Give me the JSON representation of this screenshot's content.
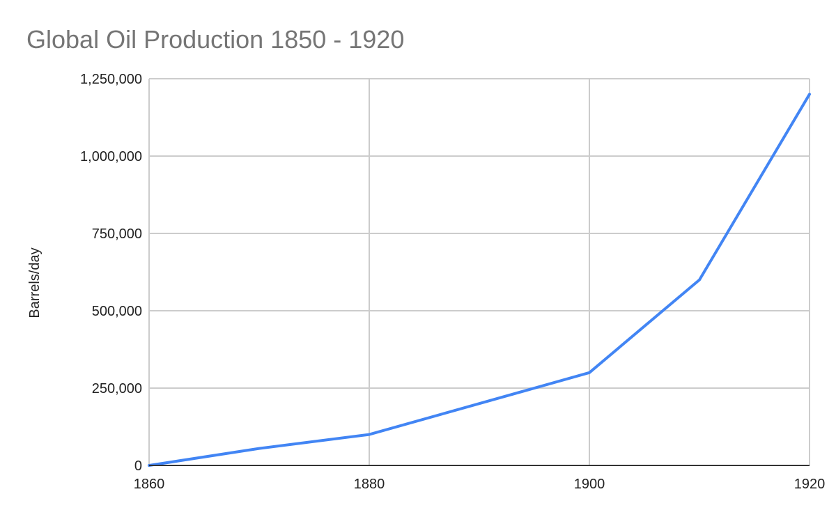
{
  "chart_data": {
    "type": "line",
    "title": "Global Oil Production 1850 - 1920",
    "xlabel": "",
    "ylabel": "Barrels/day",
    "x": [
      1860,
      1870,
      1880,
      1890,
      1900,
      1910,
      1920
    ],
    "series": [
      {
        "color": "#4285f4",
        "values": [
          0,
          55000,
          100000,
          200000,
          300000,
          600000,
          1200000
        ]
      }
    ],
    "xlim": [
      1860,
      1920
    ],
    "ylim": [
      0,
      1250000
    ],
    "x_ticks": [
      "1860",
      "1880",
      "1900",
      "1920"
    ],
    "y_ticks": [
      "0",
      "250,000",
      "500,000",
      "750,000",
      "1,000,000",
      "1,250,000"
    ],
    "grid": true,
    "legend": "none"
  }
}
